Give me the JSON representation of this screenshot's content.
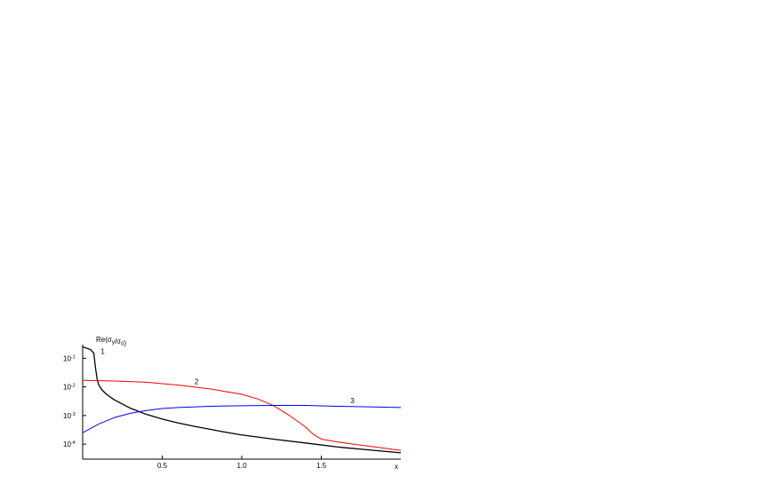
{
  "chart_data": {
    "type": "line",
    "ylabel": "Re(σ_y/σ_0)",
    "xlabel": "x",
    "y_scale": "log",
    "xlim": [
      0.0,
      2.0
    ],
    "ylim": [
      3e-05,
      0.3
    ],
    "x_ticks": [
      0.5,
      1.0,
      1.5
    ],
    "x_tick_labels": [
      "0.5",
      "1.0",
      "1.5"
    ],
    "y_ticks": [
      0.1,
      0.01,
      0.001,
      0.0001
    ],
    "y_tick_labels": [
      {
        "base": "10",
        "exp": "-1"
      },
      {
        "base": "10",
        "exp": "-2"
      },
      {
        "base": "10",
        "exp": "-3"
      },
      {
        "base": "10",
        "exp": "-4"
      }
    ],
    "grid": false,
    "series": [
      {
        "name": "1",
        "color": "#000000",
        "points": [
          [
            0.0,
            0.25
          ],
          [
            0.05,
            0.2
          ],
          [
            0.07,
            0.15
          ],
          [
            0.08,
            0.05
          ],
          [
            0.09,
            0.02
          ],
          [
            0.1,
            0.012
          ],
          [
            0.12,
            0.008
          ],
          [
            0.15,
            0.0055
          ],
          [
            0.2,
            0.0035
          ],
          [
            0.3,
            0.0018
          ],
          [
            0.4,
            0.0011
          ],
          [
            0.5,
            0.00075
          ],
          [
            0.6,
            0.00055
          ],
          [
            0.7,
            0.00042
          ],
          [
            0.8,
            0.00033
          ],
          [
            0.9,
            0.00026
          ],
          [
            1.0,
            0.00021
          ],
          [
            1.2,
            0.00015
          ],
          [
            1.4,
            0.00011
          ],
          [
            1.6,
            8e-05
          ],
          [
            1.8,
            6.3e-05
          ],
          [
            2.0,
            5e-05
          ]
        ]
      },
      {
        "name": "2",
        "color": "#ff0000",
        "points": [
          [
            0.0,
            0.017
          ],
          [
            0.2,
            0.016
          ],
          [
            0.4,
            0.0145
          ],
          [
            0.6,
            0.0115
          ],
          [
            0.8,
            0.0085
          ],
          [
            1.0,
            0.0055
          ],
          [
            1.1,
            0.0038
          ],
          [
            1.2,
            0.0022
          ],
          [
            1.3,
            0.001
          ],
          [
            1.4,
            0.0004
          ],
          [
            1.45,
            0.00022
          ],
          [
            1.5,
            0.00015
          ],
          [
            1.6,
            0.00012
          ],
          [
            1.7,
            0.0001
          ],
          [
            1.8,
            8.5e-05
          ],
          [
            1.9,
            7.2e-05
          ],
          [
            2.0,
            6e-05
          ]
        ]
      },
      {
        "name": "3",
        "color": "#0000ff",
        "points": [
          [
            0.0,
            0.00025
          ],
          [
            0.1,
            0.0005
          ],
          [
            0.2,
            0.00085
          ],
          [
            0.3,
            0.0012
          ],
          [
            0.4,
            0.0015
          ],
          [
            0.5,
            0.00175
          ],
          [
            0.6,
            0.0019
          ],
          [
            0.8,
            0.0021
          ],
          [
            1.0,
            0.0022
          ],
          [
            1.2,
            0.00225
          ],
          [
            1.4,
            0.00225
          ],
          [
            1.6,
            0.0021
          ],
          [
            1.8,
            0.002
          ],
          [
            2.0,
            0.0019
          ]
        ]
      }
    ]
  }
}
